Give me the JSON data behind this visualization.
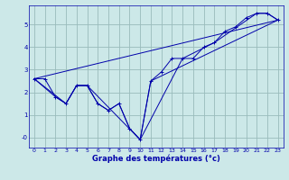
{
  "title": "Graphe des températures (°c)",
  "background_color": "#cce8e8",
  "grid_color": "#99bbbb",
  "line_color": "#0000aa",
  "xlim": [
    -0.5,
    23.5
  ],
  "ylim": [
    -0.45,
    5.85
  ],
  "xticks": [
    0,
    1,
    2,
    3,
    4,
    5,
    6,
    7,
    8,
    9,
    10,
    11,
    12,
    13,
    14,
    15,
    16,
    17,
    18,
    19,
    20,
    21,
    22,
    23
  ],
  "yticks": [
    0,
    1,
    2,
    3,
    4,
    5
  ],
  "ytick_labels": [
    "-0",
    "1",
    "2",
    "3",
    "4",
    "5"
  ],
  "series1_x": [
    0,
    1,
    2,
    3,
    4,
    5,
    6,
    7,
    8,
    9,
    10,
    11,
    12,
    13,
    14,
    15,
    16,
    17,
    18,
    19,
    20,
    21,
    22,
    23
  ],
  "series1_y": [
    2.6,
    2.6,
    1.8,
    1.5,
    2.3,
    2.3,
    1.5,
    1.2,
    1.5,
    0.4,
    -0.1,
    2.5,
    2.9,
    3.5,
    3.5,
    3.5,
    4.0,
    4.2,
    4.7,
    4.9,
    5.3,
    5.5,
    5.5,
    5.2
  ],
  "series2_x": [
    0,
    2,
    3,
    4,
    5,
    6,
    7,
    8,
    9,
    10,
    11,
    23
  ],
  "series2_y": [
    2.6,
    1.8,
    1.5,
    2.3,
    2.3,
    1.5,
    1.2,
    1.5,
    0.4,
    -0.1,
    2.5,
    5.2
  ],
  "series3_x": [
    0,
    23
  ],
  "series3_y": [
    2.6,
    5.2
  ],
  "series4_x": [
    0,
    3,
    4,
    5,
    10,
    14,
    17,
    21,
    22,
    23
  ],
  "series4_y": [
    2.6,
    1.5,
    2.3,
    2.3,
    -0.1,
    3.5,
    4.2,
    5.5,
    5.5,
    5.2
  ]
}
